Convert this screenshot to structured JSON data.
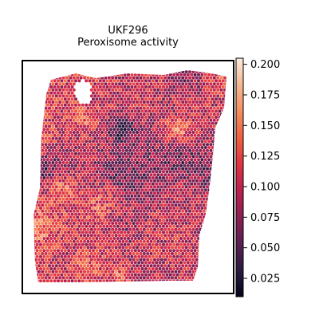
{
  "chart_data": {
    "type": "scatter",
    "title": "UKF296\nPeroxisome activity",
    "title_lines": [
      "UKF296",
      "Peroxisome activity"
    ],
    "xlabel": "",
    "ylabel": "",
    "x_ticks": "none",
    "y_ticks": "none",
    "grid": false,
    "legend": "none",
    "colormap": "rocket",
    "colormap_stops": [
      "#03051a",
      "#2b1b3f",
      "#5a1f51",
      "#8a2152",
      "#bb1f4f",
      "#e13342",
      "#f0603f",
      "#f58e5e",
      "#f6b894",
      "#faebdd"
    ],
    "colorbar": {
      "position": "right",
      "range": [
        0.01,
        0.205
      ],
      "ticks": [
        0.025,
        0.05,
        0.075,
        0.1,
        0.125,
        0.15,
        0.175,
        0.2
      ],
      "tick_labels": [
        "0.025",
        "0.050",
        "0.075",
        "0.100",
        "0.125",
        "0.150",
        "0.175",
        "0.200"
      ]
    },
    "spots": {
      "layout": "hexagonal spatial grid",
      "value_range": [
        0.01,
        0.205
      ],
      "typical_value": 0.1
    }
  }
}
